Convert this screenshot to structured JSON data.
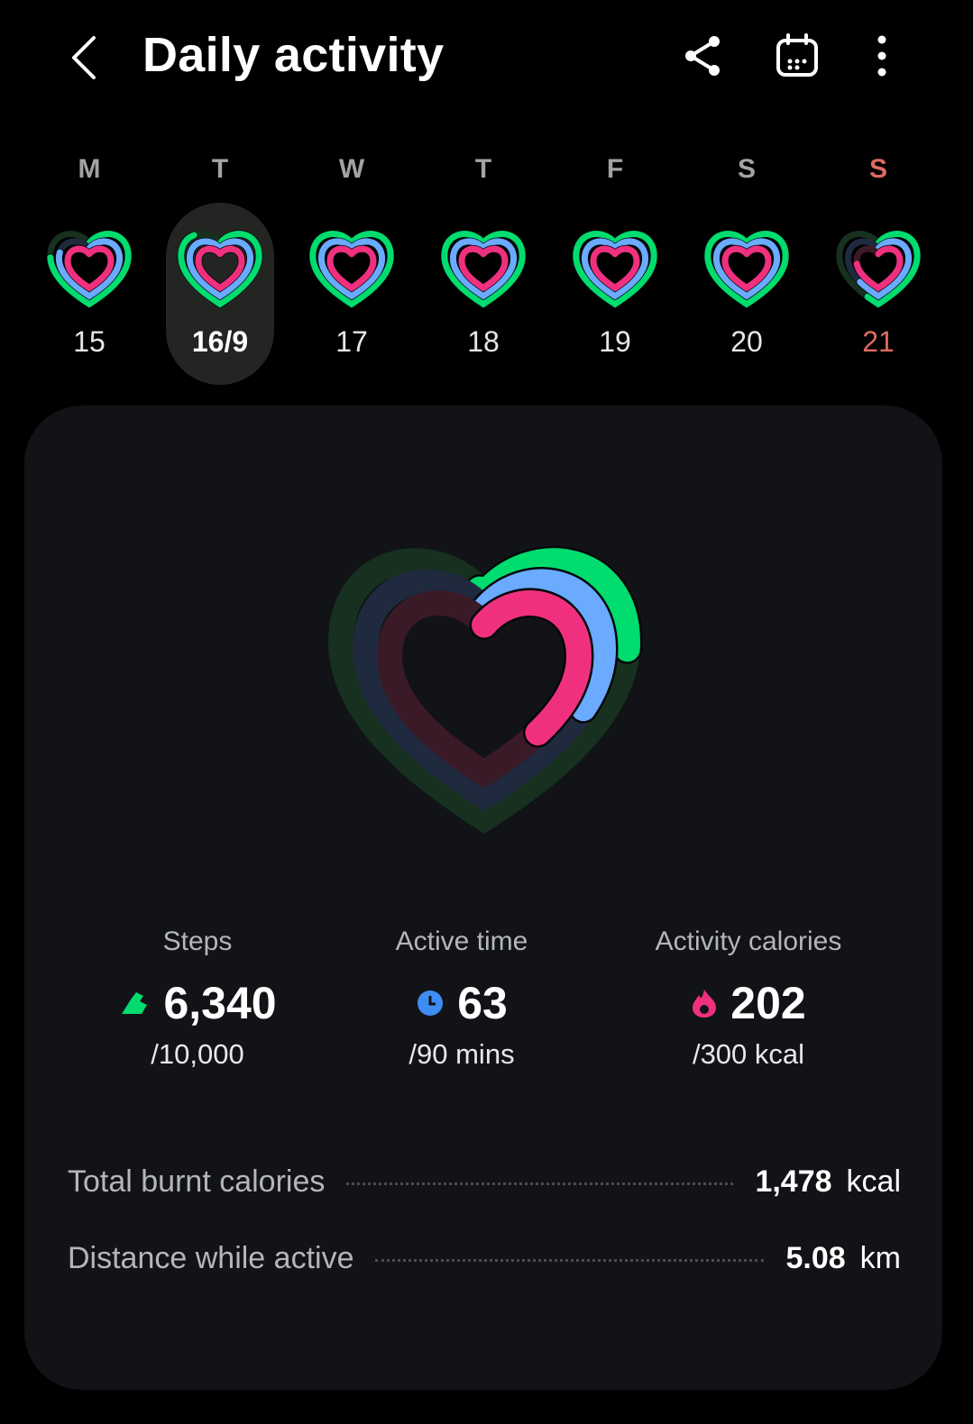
{
  "header": {
    "title": "Daily activity",
    "icons": [
      "back-icon",
      "share-icon",
      "calendar-icon",
      "more-icon"
    ]
  },
  "colors": {
    "steps": "#00dc6e",
    "active": "#6aaaff",
    "calories": "#f0307f",
    "sunday": "#dc6b62"
  },
  "week": [
    {
      "letter": "M",
      "date": "15",
      "progress": {
        "steps": 0.55,
        "active": 0.45,
        "calories": 0.4
      }
    },
    {
      "letter": "T",
      "date": "16/9",
      "selected": true,
      "progress": {
        "steps": 0.634,
        "active": 0.7,
        "calories": 0.673
      }
    },
    {
      "letter": "W",
      "date": "17",
      "progress": {
        "steps": 1,
        "active": 0.95,
        "calories": 1
      }
    },
    {
      "letter": "T",
      "date": "18",
      "progress": {
        "steps": 1,
        "active": 1,
        "calories": 1
      }
    },
    {
      "letter": "F",
      "date": "19",
      "progress": {
        "steps": 0.75,
        "active": 0.7,
        "calories": 0.8
      }
    },
    {
      "letter": "S",
      "date": "20",
      "progress": {
        "steps": 1,
        "active": 1,
        "calories": 0.95
      }
    },
    {
      "letter": "S",
      "date": "21",
      "sunday": true,
      "progress": {
        "steps": 0.4,
        "active": 0.35,
        "calories": 0.3
      }
    }
  ],
  "summary": {
    "progress": {
      "steps": 0.634,
      "active": 0.7,
      "calories": 0.673
    },
    "stats": [
      {
        "label": "Steps",
        "value": "6,340",
        "goal": "/10,000",
        "icon": "shoe-icon"
      },
      {
        "label": "Active time",
        "value": "63",
        "goal": "/90 mins",
        "icon": "clock-icon"
      },
      {
        "label": "Activity calories",
        "value": "202",
        "goal": "/300 kcal",
        "icon": "flame-icon"
      }
    ],
    "rows": [
      {
        "label": "Total burnt calories",
        "value": "1,478",
        "unit": "kcal"
      },
      {
        "label": "Distance while active",
        "value": "5.08",
        "unit": "km"
      }
    ]
  }
}
